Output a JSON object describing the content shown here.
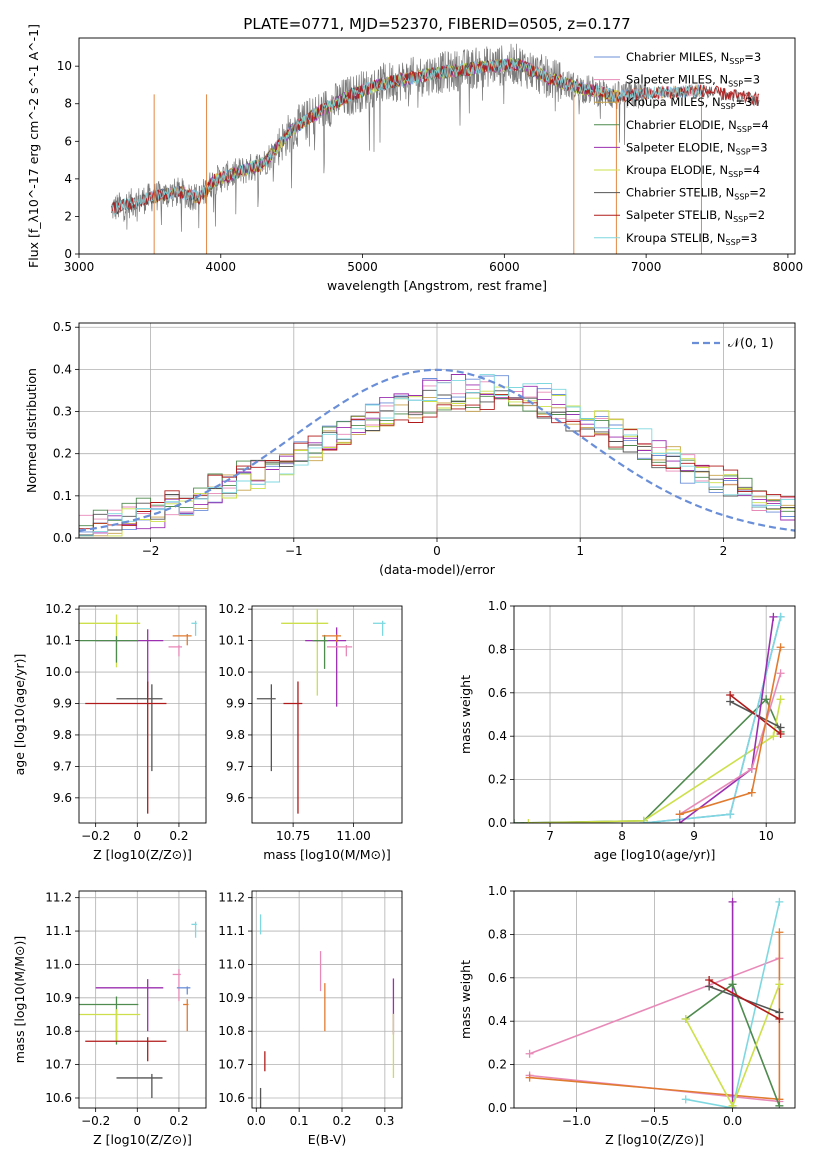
{
  "figure": {
    "title": "PLATE=0771, MJD=52370, FIBERID=0505, z=0.177"
  },
  "colors": {
    "chabrier_miles": "#6c8fd9",
    "salpeter_miles": "#e88ab8",
    "kroupa_miles": "#c8a24a",
    "chabrier_elodie": "#4f8a4f",
    "salpeter_elodie": "#9b2fb0",
    "kroupa_elodie": "#cde04b",
    "chabrier_stelib": "#555555",
    "salpeter_stelib": "#b01a1a",
    "kroupa_stelib": "#7fd8e0",
    "orange_line": "#e07b30",
    "gaussian": "#6a8fd8"
  },
  "chart_data": [
    {
      "id": "spectrum",
      "type": "line",
      "title": "PLATE=0771, MJD=52370, FIBERID=0505, z=0.177",
      "xlabel": "wavelength [Angstrom, rest frame]",
      "ylabel": "Flux [f_λ10^-17 erg cm^-2 s^-1 A^-1]",
      "xlim": [
        3000,
        8050
      ],
      "ylim": [
        0,
        11.5
      ],
      "xticks": [
        3000,
        4000,
        5000,
        6000,
        7000,
        8000
      ],
      "yticks": [
        0,
        2,
        4,
        6,
        8,
        10
      ],
      "legend": "right",
      "legend_entries": [
        {
          "label": "Chabrier MILES, N",
          "sub": "SSP",
          "val": "=3",
          "color_key": "chabrier_miles"
        },
        {
          "label": "Salpeter MILES, N",
          "sub": "SSP",
          "val": "=3",
          "color_key": "salpeter_miles"
        },
        {
          "label": "Kroupa MILES, N",
          "sub": "SSP",
          "val": "=3",
          "color_key": "kroupa_miles"
        },
        {
          "label": "Chabrier ELODIE, N",
          "sub": "SSP",
          "val": "=4",
          "color_key": "chabrier_elodie"
        },
        {
          "label": "Salpeter ELODIE, N",
          "sub": "SSP",
          "val": "=3",
          "color_key": "salpeter_elodie"
        },
        {
          "label": "Kroupa ELODIE, N",
          "sub": "SSP",
          "val": "=4",
          "color_key": "kroupa_elodie"
        },
        {
          "label": "Chabrier STELIB, N",
          "sub": "SSP",
          "val": "=2",
          "color_key": "chabrier_stelib"
        },
        {
          "label": "Salpeter STELIB, N",
          "sub": "SSP",
          "val": "=2",
          "color_key": "salpeter_stelib"
        },
        {
          "label": "Kroupa STELIB, N",
          "sub": "SSP",
          "val": "=3",
          "color_key": "kroupa_stelib"
        }
      ],
      "continuum": [
        [
          3230,
          2.4
        ],
        [
          3500,
          3.0
        ],
        [
          3700,
          3.3
        ],
        [
          3850,
          3.0
        ],
        [
          3950,
          3.9
        ],
        [
          4100,
          4.3
        ],
        [
          4300,
          4.8
        ],
        [
          4500,
          6.6
        ],
        [
          4700,
          7.6
        ],
        [
          4900,
          8.4
        ],
        [
          5100,
          9.0
        ],
        [
          5300,
          9.3
        ],
        [
          5500,
          9.6
        ],
        [
          5700,
          9.8
        ],
        [
          5900,
          10.0
        ],
        [
          6100,
          10.1
        ],
        [
          6300,
          9.4
        ],
        [
          6500,
          8.9
        ],
        [
          6800,
          8.4
        ],
        [
          7100,
          8.6
        ],
        [
          7400,
          8.7
        ],
        [
          7800,
          8.2
        ]
      ],
      "vertical_drops": [
        3530,
        3900,
        6490,
        6790,
        7390
      ]
    },
    {
      "id": "residuals",
      "type": "line",
      "xlabel": "(data-model)/error",
      "ylabel": "Normed distribution",
      "xlim": [
        -2.5,
        2.5
      ],
      "ylim": [
        0,
        0.51
      ],
      "xticks": [
        -2,
        -1,
        0,
        1,
        2
      ],
      "yticks": [
        0.0,
        0.1,
        0.2,
        0.3,
        0.4,
        0.5
      ],
      "legend": "top-right",
      "gaussian_label": "𝒩(0, 1)",
      "grid": true
    },
    {
      "id": "age_vs_z",
      "type": "scatter",
      "xlabel": "Z [log10(Z/Z⊙)]",
      "ylabel": "age  [log10(age/yr)]",
      "xlim": [
        -0.28,
        0.33
      ],
      "ylim": [
        9.52,
        10.21
      ],
      "xticks": [
        -0.2,
        0.0,
        0.2
      ],
      "yticks": [
        9.6,
        9.7,
        9.8,
        9.9,
        10.0,
        10.1,
        10.2
      ],
      "grid": true,
      "points": [
        {
          "color_key": "kroupa_stelib",
          "x": 0.28,
          "y": 10.155,
          "dx": 0.02,
          "dy": 0.04
        },
        {
          "color_key": "kroupa_elodie",
          "x": -0.1,
          "y": 10.155,
          "dx": 0.38,
          "dy": 0.14
        },
        {
          "color_key": "salpeter_elodie",
          "x": 0.05,
          "y": 10.1,
          "dx": 0.25,
          "dy": 0.18
        },
        {
          "color_key": "chabrier_elodie",
          "x": -0.1,
          "y": 10.1,
          "dx": 0.35,
          "dy": 0.07
        },
        {
          "color_key": "salpeter_miles",
          "x": 0.2,
          "y": 10.08,
          "dx": 0.05,
          "dy": 0.03
        },
        {
          "color_key": "chabrier_stelib",
          "x": 0.07,
          "y": 9.915,
          "dx": 0.17,
          "dy": 0.23
        },
        {
          "color_key": "salpeter_stelib",
          "x": 0.05,
          "y": 9.9,
          "dx": 0.3,
          "dy": 0.35
        },
        {
          "color_key": "orange_line",
          "x": 0.24,
          "y": 10.115,
          "dx": 0.07,
          "dy": 0.03
        }
      ]
    },
    {
      "id": "age_vs_mass",
      "type": "scatter",
      "xlabel": "mass [log10(M/M⊙)]",
      "xlim": [
        10.58,
        11.2
      ],
      "ylim": [
        9.52,
        10.21
      ],
      "xticks": [
        10.75,
        11.0
      ],
      "xtick_labels": [
        "10.75",
        "11.00"
      ],
      "yticks": [
        9.6,
        9.7,
        9.8,
        9.9,
        10.0,
        10.1,
        10.2
      ],
      "grid": true,
      "points": [
        {
          "color_key": "kroupa_stelib",
          "x": 11.12,
          "y": 10.155,
          "dx": 0.04,
          "dy": 0.04
        },
        {
          "color_key": "kroupa_elodie",
          "x": 10.85,
          "y": 10.155,
          "dx": 0.15,
          "dy": 0.23
        },
        {
          "color_key": "salpeter_elodie",
          "x": 10.93,
          "y": 10.1,
          "dx": 0.13,
          "dy": 0.21
        },
        {
          "color_key": "chabrier_elodie",
          "x": 10.88,
          "y": 10.1,
          "dx": 0.05,
          "dy": 0.09
        },
        {
          "color_key": "salpeter_miles",
          "x": 10.97,
          "y": 10.08,
          "dx": 0.08,
          "dy": 0.03
        },
        {
          "color_key": "chabrier_stelib",
          "x": 10.66,
          "y": 9.915,
          "dx": 0.06,
          "dy": 0.23
        },
        {
          "color_key": "salpeter_stelib",
          "x": 10.77,
          "y": 9.9,
          "dx": 0.06,
          "dy": 0.35
        },
        {
          "color_key": "orange_line",
          "x": 10.93,
          "y": 10.115,
          "dx": 0.06,
          "dy": 0.02
        }
      ]
    },
    {
      "id": "massweight_vs_age",
      "type": "line",
      "xlabel": "age  [log10(age/yr)]",
      "ylabel": "mass weight",
      "xlim": [
        6.5,
        10.4
      ],
      "ylim": [
        0,
        1.0
      ],
      "xticks": [
        7,
        8,
        9,
        10
      ],
      "yticks": [
        0.0,
        0.2,
        0.4,
        0.6,
        0.8,
        1.0
      ],
      "grid": true,
      "series": [
        {
          "color_key": "chabrier_elodie",
          "points": [
            [
              6.5,
              0.0
            ],
            [
              8.3,
              0.01
            ],
            [
              10.0,
              0.57
            ],
            [
              10.2,
              0.42
            ]
          ]
        },
        {
          "color_key": "kroupa_elodie",
          "points": [
            [
              6.7,
              0.0
            ],
            [
              8.3,
              0.01
            ],
            [
              10.1,
              0.4
            ],
            [
              10.2,
              0.57
            ]
          ]
        },
        {
          "color_key": "chabrier_stelib",
          "points": [
            [
              9.5,
              0.56
            ],
            [
              10.2,
              0.44
            ]
          ]
        },
        {
          "color_key": "salpeter_stelib",
          "points": [
            [
              9.5,
              0.59
            ],
            [
              10.2,
              0.41
            ]
          ]
        },
        {
          "color_key": "chabrier_miles",
          "points": [
            [
              8.3,
              0.0
            ],
            [
              9.5,
              0.04
            ],
            [
              10.2,
              0.95
            ]
          ]
        },
        {
          "color_key": "kroupa_stelib",
          "points": [
            [
              8.3,
              0.0
            ],
            [
              9.5,
              0.04
            ],
            [
              10.2,
              0.95
            ]
          ]
        },
        {
          "color_key": "salpeter_elodie",
          "points": [
            [
              8.8,
              0.0
            ],
            [
              9.8,
              0.25
            ],
            [
              10.1,
              0.95
            ]
          ]
        },
        {
          "color_key": "salpeter_miles",
          "points": [
            [
              8.8,
              0.04
            ],
            [
              9.8,
              0.25
            ],
            [
              10.2,
              0.69
            ]
          ]
        },
        {
          "color_key": "orange_line",
          "points": [
            [
              8.8,
              0.04
            ],
            [
              9.8,
              0.14
            ],
            [
              10.2,
              0.81
            ]
          ]
        }
      ]
    },
    {
      "id": "mass_vs_z",
      "type": "scatter",
      "xlabel": "Z [log10(Z/Z⊙)]",
      "ylabel": "mass [log10(M/M⊙)]",
      "xlim": [
        -0.28,
        0.33
      ],
      "ylim": [
        10.57,
        11.22
      ],
      "xticks": [
        -0.2,
        0.0,
        0.2
      ],
      "yticks": [
        10.6,
        10.7,
        10.8,
        10.9,
        11.0,
        11.1,
        11.2
      ],
      "grid": true,
      "points": [
        {
          "color_key": "kroupa_stelib",
          "x": 0.28,
          "y": 11.12,
          "dx": 0.02,
          "dy": 0.04
        },
        {
          "color_key": "salpeter_miles",
          "x": 0.2,
          "y": 10.97,
          "dx": 0.03,
          "dy": 0.08
        },
        {
          "color_key": "salpeter_elodie",
          "x": 0.05,
          "y": 10.93,
          "dx": 0.25,
          "dy": 0.13
        },
        {
          "color_key": "chabrier_miles",
          "x": 0.24,
          "y": 10.93,
          "dx": 0.05,
          "dy": 0.02
        },
        {
          "color_key": "chabrier_elodie",
          "x": -0.1,
          "y": 10.88,
          "dx": 0.35,
          "dy": 0.12
        },
        {
          "color_key": "kroupa_elodie",
          "x": -0.1,
          "y": 10.85,
          "dx": 0.38,
          "dy": 0.08
        },
        {
          "color_key": "orange_line",
          "x": 0.24,
          "y": 10.88,
          "dx": 0.02,
          "dy": 0.08
        },
        {
          "color_key": "salpeter_stelib",
          "x": 0.05,
          "y": 10.77,
          "dx": 0.3,
          "dy": 0.06
        },
        {
          "color_key": "chabrier_stelib",
          "x": 0.07,
          "y": 10.66,
          "dx": 0.17,
          "dy": 0.06
        }
      ]
    },
    {
      "id": "mass_vs_ebv",
      "type": "scatter",
      "xlabel": "E(B-V)",
      "xlim": [
        -0.01,
        0.34
      ],
      "ylim": [
        10.57,
        11.22
      ],
      "xticks": [
        0.0,
        0.1,
        0.2,
        0.3
      ],
      "xtick_labels": [
        "0.0",
        "0.1",
        "0.2",
        "0.3"
      ],
      "yticks": [
        10.6,
        10.7,
        10.8,
        10.9,
        11.0,
        11.1,
        11.2
      ],
      "grid": true,
      "points": [
        {
          "color_key": "kroupa_stelib",
          "x": 0.01,
          "y": 11.14,
          "dx": 0.0,
          "dy": 0.05
        },
        {
          "color_key": "salpeter_miles",
          "x": 0.15,
          "y": 11.02,
          "dx": 0.0,
          "dy": 0.1
        },
        {
          "color_key": "orange_line",
          "x": 0.16,
          "y": 10.92,
          "dx": 0.0,
          "dy": 0.12
        },
        {
          "color_key": "salpeter_elodie",
          "x": 0.32,
          "y": 10.93,
          "dx": 0.0,
          "dy": 0.14
        },
        {
          "color_key": "kroupa_elodie",
          "x": 0.32,
          "y": 10.82,
          "dx": 0.0,
          "dy": 0.16
        },
        {
          "color_key": "salpeter_stelib",
          "x": 0.02,
          "y": 10.73,
          "dx": 0.0,
          "dy": 0.05
        },
        {
          "color_key": "chabrier_stelib",
          "x": 0.01,
          "y": 10.62,
          "dx": 0.0,
          "dy": 0.05
        }
      ]
    },
    {
      "id": "massweight_vs_z",
      "type": "line",
      "xlabel": "Z [log10(Z/Z⊙)]",
      "ylabel": "mass weight",
      "xlim": [
        -1.4,
        0.4
      ],
      "ylim": [
        0,
        1.0
      ],
      "xticks": [
        -1.0,
        -0.5,
        0.0
      ],
      "xtick_labels": [
        "−1.0",
        "−0.5",
        "0.0"
      ],
      "yticks": [
        0.0,
        0.2,
        0.4,
        0.6,
        0.8,
        1.0
      ],
      "grid": true,
      "series": [
        {
          "color_key": "salpeter_miles",
          "points": [
            [
              -1.3,
              0.25
            ],
            [
              0.3,
              0.69
            ]
          ]
        },
        {
          "color_key": "salpeter_miles",
          "points": [
            [
              -1.3,
              0.15
            ],
            [
              0.3,
              0.03
            ]
          ]
        },
        {
          "color_key": "orange_line",
          "points": [
            [
              -1.3,
              0.14
            ],
            [
              0.3,
              0.04
            ],
            [
              0.3,
              0.81
            ]
          ]
        },
        {
          "color_key": "salpeter_elodie",
          "points": [
            [
              0.0,
              0.95
            ],
            [
              0.0,
              0.0
            ]
          ]
        },
        {
          "color_key": "kroupa_stelib",
          "points": [
            [
              -0.3,
              0.04
            ],
            [
              0.0,
              0.0
            ],
            [
              0.3,
              0.95
            ]
          ]
        },
        {
          "color_key": "chabrier_elodie",
          "points": [
            [
              -0.3,
              0.41
            ],
            [
              0.0,
              0.57
            ],
            [
              0.3,
              0.01
            ]
          ]
        },
        {
          "color_key": "kroupa_elodie",
          "points": [
            [
              -0.3,
              0.41
            ],
            [
              0.0,
              0.01
            ],
            [
              0.3,
              0.57
            ]
          ]
        },
        {
          "color_key": "chabrier_stelib",
          "points": [
            [
              -0.15,
              0.56
            ],
            [
              0.3,
              0.44
            ]
          ]
        },
        {
          "color_key": "salpeter_stelib",
          "points": [
            [
              -0.15,
              0.59
            ],
            [
              0.3,
              0.41
            ]
          ]
        }
      ]
    }
  ]
}
